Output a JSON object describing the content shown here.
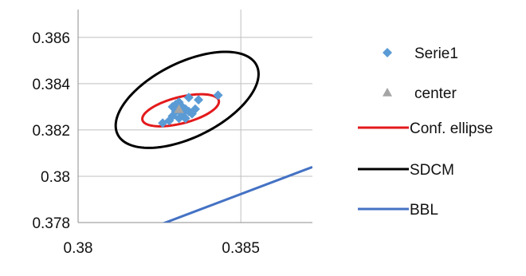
{
  "chart_data": {
    "type": "scatter",
    "title": "",
    "xlabel": "",
    "ylabel": "",
    "xlim": [
      0.38,
      0.3872
    ],
    "ylim": [
      0.378,
      0.3872
    ],
    "x_ticks": [
      {
        "value": 0.38,
        "label": "0.38"
      },
      {
        "value": 0.385,
        "label": "0.385"
      }
    ],
    "y_ticks": [
      {
        "value": 0.378,
        "label": "0.378"
      },
      {
        "value": 0.38,
        "label": "0.38"
      },
      {
        "value": 0.382,
        "label": "0.382"
      },
      {
        "value": 0.384,
        "label": "0.384"
      },
      {
        "value": 0.386,
        "label": "0.386"
      }
    ],
    "grid": true,
    "legend_position": "right",
    "series": [
      {
        "name": "Serie1",
        "kind": "points",
        "marker": "diamond",
        "color": "#5B9BD5",
        "points": [
          [
            0.3826,
            0.3823
          ],
          [
            0.3828,
            0.3824
          ],
          [
            0.3829,
            0.3826
          ],
          [
            0.383,
            0.3828
          ],
          [
            0.3829,
            0.383
          ],
          [
            0.383,
            0.3831
          ],
          [
            0.3831,
            0.3829
          ],
          [
            0.3832,
            0.3827
          ],
          [
            0.3833,
            0.3825
          ],
          [
            0.3832,
            0.383
          ],
          [
            0.3831,
            0.3832
          ],
          [
            0.3834,
            0.3828
          ],
          [
            0.3835,
            0.3827
          ],
          [
            0.3836,
            0.3829
          ],
          [
            0.3837,
            0.3833
          ],
          [
            0.3834,
            0.3834
          ],
          [
            0.3843,
            0.3835
          ],
          [
            0.3833,
            0.3829
          ],
          [
            0.3831,
            0.3825
          ]
        ]
      },
      {
        "name": "center",
        "kind": "points",
        "marker": "triangle",
        "color": "#A5A5A5",
        "points": [
          [
            0.3831,
            0.3829
          ]
        ]
      },
      {
        "name": "Conf. ellipse",
        "kind": "ellipse",
        "color": "#E31A1C",
        "center": [
          0.38315,
          0.38285
        ],
        "a": 0.00125,
        "b": 0.00055,
        "angle_deg": 22
      },
      {
        "name": "SDCM",
        "kind": "ellipse",
        "color": "#000000",
        "center": [
          0.38335,
          0.3833
        ],
        "a": 0.00265,
        "b": 0.00145,
        "angle_deg": 42
      },
      {
        "name": "BBL",
        "kind": "line",
        "color": "#4472C4",
        "points": [
          [
            0.3825,
            0.3779
          ],
          [
            0.3872,
            0.3804
          ]
        ]
      }
    ]
  }
}
